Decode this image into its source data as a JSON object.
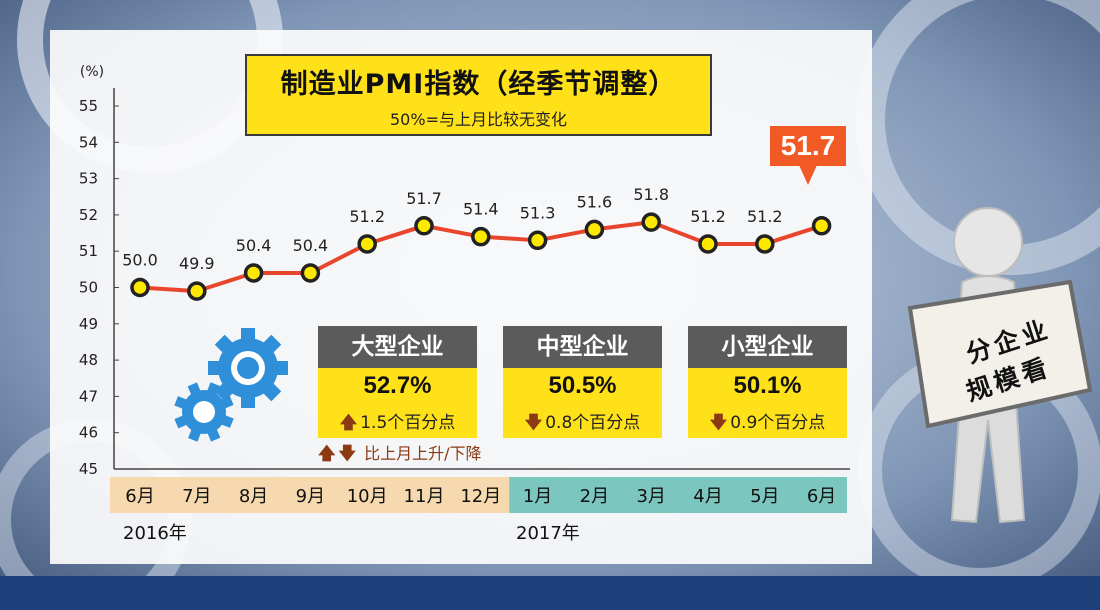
{
  "chart_data": {
    "type": "line",
    "title": "制造业PMI指数（经季节调整）",
    "subtitle": "50%=与上月比较无变化",
    "y_unit": "(%)",
    "ylim": [
      45,
      55
    ],
    "yticks": [
      "45",
      "46",
      "47",
      "48",
      "49",
      "50",
      "51",
      "52",
      "53",
      "54",
      "55"
    ],
    "categories": [
      "6月",
      "7月",
      "8月",
      "9月",
      "10月",
      "11月",
      "12月",
      "1月",
      "2月",
      "3月",
      "4月",
      "5月",
      "6月"
    ],
    "years": [
      "2016年",
      "2017年"
    ],
    "values": [
      50.0,
      49.9,
      50.4,
      50.4,
      51.2,
      51.7,
      51.4,
      51.3,
      51.6,
      51.8,
      51.2,
      51.2,
      51.7
    ],
    "value_labels": [
      "50.0",
      "49.9",
      "50.4",
      "50.4",
      "51.2",
      "51.7",
      "51.4",
      "51.3",
      "51.6",
      "51.8",
      "51.2",
      "51.2",
      ""
    ],
    "highlight_label": "51.7",
    "grid": false,
    "colors": {
      "line": "#e8452c",
      "marker_fill": "#ffe800",
      "marker_stroke": "#222222",
      "highlight": "#f15a24",
      "year_2016": "#f7d9b0",
      "year_2017": "#7cc6c0"
    }
  },
  "cards": [
    {
      "name": "大型企业",
      "value": "52.7%",
      "direction": "up",
      "arrow": "🡅",
      "change": "1.5个百分点"
    },
    {
      "name": "中型企业",
      "value": "50.5%",
      "direction": "down",
      "arrow": "🡇",
      "change": "0.8个百分点"
    },
    {
      "name": "小型企业",
      "value": "50.1%",
      "direction": "down",
      "arrow": "🡇",
      "change": "0.9个百分点"
    }
  ],
  "note": {
    "up_arrow": "🡅",
    "down_arrow": "🡇",
    "text": "比上月上升/下降"
  },
  "sign": {
    "line1": "分企业",
    "line2": "规模看"
  },
  "icons": [
    "gear-icon",
    "person-holding-sign-icon"
  ]
}
